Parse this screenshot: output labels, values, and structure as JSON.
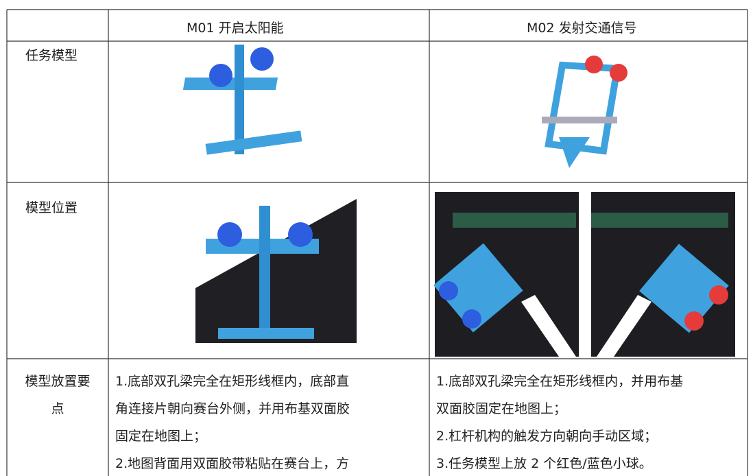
{
  "table": {
    "header": [
      "M01  开启太阳能",
      "M02  发射交通信号"
    ],
    "rows": [
      {
        "label": "任务模型"
      },
      {
        "label": "模型位置"
      },
      {
        "label_lines": [
          "模型放置要",
          "点"
        ],
        "cells": [
          [
            "1.底部双孔梁完全在矩形线框内，底部直",
            "角连接片朝向赛台外侧，并用布基双面胶",
            "固定在地图上；",
            "2.地图背面用双面胶带粘贴在赛台上，方"
          ],
          [
            "1.底部双孔梁完全在矩形线框内，并用布基",
            "双面胶固定在地图上；",
            "2.杠杆机构的触发方向朝向手动区域；",
            "3.任务模型上放 2 个红色/蓝色小球。"
          ]
        ]
      }
    ]
  }
}
